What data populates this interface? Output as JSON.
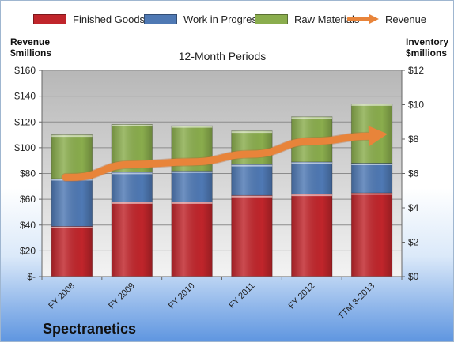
{
  "chart_data": {
    "type": "bar",
    "stacked": true,
    "title": "12-Month Periods",
    "categories": [
      "FY 2008",
      "FY 2009",
      "FY 2010",
      "FY 2011",
      "FY 2012",
      "TTM 3-2013"
    ],
    "series": [
      {
        "name": "Finished Goods",
        "color": "#c0252b",
        "values": [
          39,
          58,
          58,
          63,
          64,
          65
        ]
      },
      {
        "name": "Work in Progress",
        "color": "#4f79b4",
        "values": [
          37,
          23,
          24,
          24,
          25,
          23
        ]
      },
      {
        "name": "Raw Materials",
        "color": "#8aad4d",
        "values": [
          34,
          37,
          35,
          26,
          35,
          46
        ]
      }
    ],
    "line_series": {
      "name": "Revenue",
      "color": "#e8843a",
      "values": [
        77,
        87,
        89,
        95,
        105,
        109
      ],
      "arrow": true
    },
    "y_left": {
      "title_line1": "Revenue",
      "title_line2": "$millions",
      "ylim": [
        0,
        160
      ],
      "ticks": [
        "$-",
        "$20",
        "$40",
        "$60",
        "$80",
        "$100",
        "$120",
        "$140",
        "$160"
      ]
    },
    "y_right": {
      "title_line1": "Inventory",
      "title_line2": "$millions",
      "ylim": [
        0,
        12
      ],
      "ticks": [
        "$0",
        "$2",
        "$4",
        "$6",
        "$8",
        "$10",
        "$12"
      ]
    },
    "legend": "top",
    "grid": true
  },
  "company": "Spectranetics"
}
